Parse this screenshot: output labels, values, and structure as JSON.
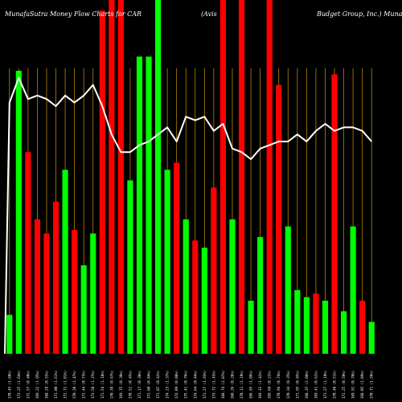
{
  "chart_data": {
    "type": "bar",
    "title_left": "MunafaSutra  Money Flow  Charts for CAR",
    "title_mid": "(Avis",
    "title_right": "Budget Group, Inc.) MunafaSutra.com",
    "xlabel": "",
    "ylabel": "",
    "ylim": [
      0,
      100
    ],
    "grid": false,
    "legend": "none",
    "colors": {
      "up": "#00ff00",
      "down": "#ff0000",
      "line": "#ffffff",
      "grid": "#b8860b",
      "background": "#000000"
    },
    "categories": [
      "170.45 (1.60%)",
      "173.25 (1.64%)",
      "172.57 (0.40%)",
      "169.22 (1.95%)",
      "168.29 (0.55%)",
      "171.00 (1.61%)",
      "172.72 (1.01%)",
      "170.20 (1.47%)",
      "171.44 (0.73%)",
      "173.58 (1.25%)",
      "171.54 (1.18%)",
      "170.39 (0.67%)",
      "169.75 (0.38%)",
      "170.52 (0.45%)",
      "171.17 (0.38%)",
      "172.60 (0.84%)",
      "171.87 (0.42%)",
      "174.23 (1.37%)",
      "174.09 (0.08%)",
      "175.41 (0.76%)",
      "174.64 (0.44%)",
      "171.27 (1.93%)",
      "173.72 (1.43%)",
      "168.74 (2.87%)",
      "168.26 (0.28%)",
      "170.11 (1.10%)",
      "166.95 (1.86%)",
      "169.32 (1.42%)",
      "169.69 (0.22%)",
      "170.94 (0.74%)",
      "170.34 (0.35%)",
      "171.95 (0.95%)",
      "168.37 (2.08%)",
      "169.41 (0.62%)",
      "171.27 (1.10%)",
      "170.40 (0.51%)",
      "171.25 (0.50%)",
      "169.91 (0.78%)",
      "168.05 (1.09%)",
      "170.71 (1.58%)"
    ],
    "series": [
      {
        "values": [
          11,
          80,
          57,
          38,
          34,
          43,
          52,
          35,
          25,
          34,
          97,
          100,
          100,
          49,
          84,
          84,
          100,
          52,
          54,
          38,
          32,
          30,
          47,
          100,
          38,
          100,
          15,
          33,
          100,
          76,
          36,
          18,
          16,
          17,
          15,
          79,
          12,
          36,
          15,
          9
        ]
      }
    ],
    "bar_colors": [
      "up",
      "up",
      "down",
      "down",
      "down",
      "down",
      "up",
      "down",
      "up",
      "up",
      "down",
      "down",
      "down",
      "up",
      "up",
      "up",
      "up",
      "up",
      "down",
      "up",
      "down",
      "up",
      "down",
      "down",
      "up",
      "down",
      "up",
      "up",
      "down",
      "down",
      "up",
      "up",
      "up",
      "down",
      "up",
      "down",
      "up",
      "up",
      "down",
      "up"
    ],
    "line_values": [
      71,
      78,
      72,
      73,
      72,
      70,
      73,
      71,
      73,
      76,
      70,
      62,
      57,
      57,
      59,
      60,
      62,
      64,
      60,
      67,
      66,
      67,
      63,
      65,
      58,
      57,
      55,
      58,
      59,
      60,
      60,
      62,
      60,
      63,
      65,
      63,
      64,
      64,
      63,
      60
    ],
    "bar_heights_pct": [
      11,
      80,
      57,
      38,
      34,
      43,
      52,
      35,
      25,
      34,
      97,
      100,
      100,
      49,
      84,
      84,
      100,
      52,
      54,
      38,
      32,
      30,
      47,
      100,
      38,
      100,
      15,
      33,
      100,
      76,
      36,
      18,
      16,
      17,
      15,
      79,
      12,
      36,
      15,
      9
    ]
  }
}
